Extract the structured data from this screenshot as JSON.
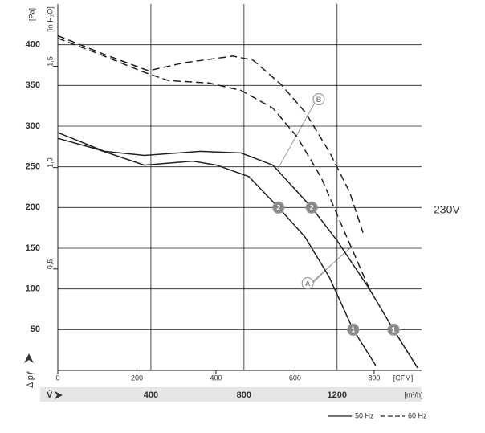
{
  "chart_data": {
    "type": "line",
    "side_label": "230V",
    "y_label": "[Pa]",
    "y2_label": "[in H₂O]",
    "y_symbol": "Δ pƒ",
    "x_label": "[CFM]",
    "x2_label": "[m³/h]",
    "x2_symbol": "V̇",
    "xlim": [
      0,
      920
    ],
    "xticks": [
      0,
      200,
      400,
      600,
      800
    ],
    "x2lim": [
      0,
      1563
    ],
    "x2ticks": [
      400,
      800,
      1200
    ],
    "ylim": [
      0,
      450
    ],
    "yticks": [
      50,
      100,
      150,
      200,
      250,
      300,
      350,
      400
    ],
    "y2lim": [
      0,
      1.807
    ],
    "y2ticks": [
      {
        "value": 0.5,
        "label": "0,5"
      },
      {
        "value": 1.0,
        "label": "1,0"
      },
      {
        "value": 1.5,
        "label": "1,5"
      }
    ],
    "grid": true,
    "series": [
      {
        "dash": "solid",
        "color": "#222",
        "x": [
          0,
          97,
          219,
          341,
          402,
          483,
          558,
          625,
          686,
          747,
          804
        ],
        "values": [
          285,
          272,
          252,
          257,
          252,
          238,
          200,
          164,
          115,
          50,
          6
        ]
      },
      {
        "dash": "solid",
        "color": "#222",
        "x": [
          0,
          118,
          219,
          361,
          463,
          544,
          642,
          707,
          788,
          849,
          910
        ],
        "values": [
          292,
          269,
          264,
          269,
          267,
          252,
          200,
          159,
          100,
          50,
          3
        ]
      },
      {
        "dash": "dashed",
        "color": "#222",
        "x": [
          0,
          118,
          229,
          321,
          443,
          494,
          565,
          626,
          687,
          738,
          772
        ],
        "values": [
          411,
          388,
          368,
          378,
          386,
          381,
          351,
          317,
          268,
          219,
          169
        ]
      },
      {
        "dash": "dashed",
        "color": "#222",
        "x": [
          0,
          97,
          219,
          280,
          382,
          463,
          544,
          605,
          666,
          727,
          788
        ],
        "values": [
          408,
          390,
          366,
          356,
          353,
          344,
          322,
          287,
          237,
          168,
          100
        ]
      }
    ],
    "annotations": [
      {
        "text": "2",
        "x": 558,
        "y": 200,
        "filled": true
      },
      {
        "text": "2",
        "x": 642,
        "y": 200,
        "filled": true
      },
      {
        "text": "1",
        "x": 747,
        "y": 50,
        "filled": true
      },
      {
        "text": "1",
        "x": 849,
        "y": 50,
        "filled": true
      },
      {
        "text": "A",
        "x": 632,
        "y": 107,
        "filled": false
      },
      {
        "text": "B",
        "x": 660,
        "y": 333,
        "filled": false
      }
    ],
    "legend": [
      {
        "label": "50 Hz",
        "dash": "solid"
      },
      {
        "label": "60 Hz",
        "dash": "dashed"
      }
    ]
  }
}
